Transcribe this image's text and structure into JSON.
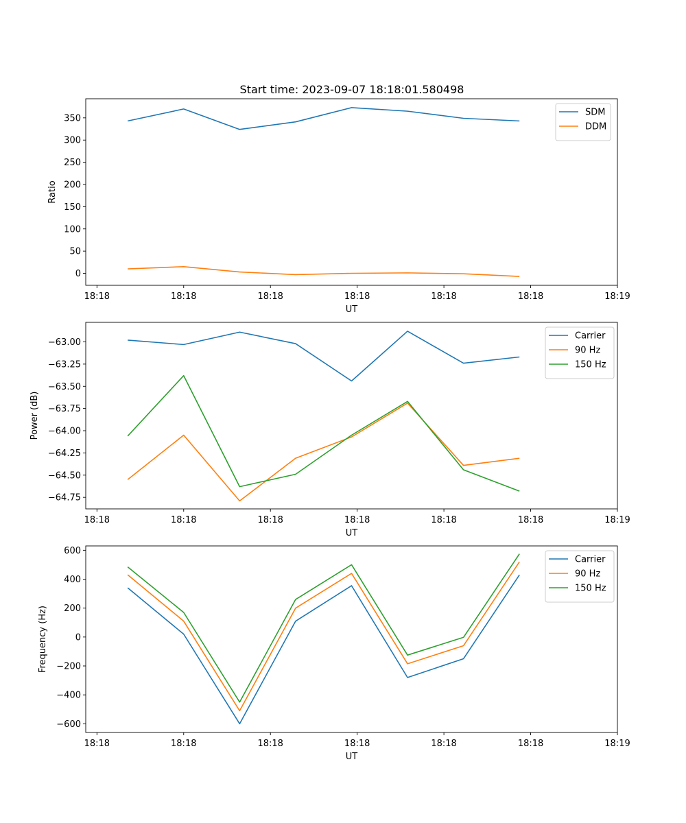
{
  "figure": {
    "title": "Start time: 2023-09-07 18:18:01.580498"
  },
  "chart_data": [
    {
      "type": "line",
      "name": "ratio-panel",
      "xlabel": "UT",
      "ylabel": "Ratio",
      "x": [
        1,
        2,
        3,
        4,
        5,
        6,
        7,
        8
      ],
      "xlim": [
        0.25,
        9.75
      ],
      "xticks": [
        0.45,
        2,
        3.55,
        5.1,
        6.65,
        8.2,
        9.75
      ],
      "xtick_labels": [
        "18:18",
        "18:18",
        "18:18",
        "18:18",
        "18:18",
        "18:18",
        "18:19"
      ],
      "ylim": [
        -27,
        393
      ],
      "yticks": [
        0,
        50,
        100,
        150,
        200,
        250,
        300,
        350
      ],
      "ytick_labels": [
        "0",
        "50",
        "100",
        "150",
        "200",
        "250",
        "300",
        "350"
      ],
      "legend": "top-right",
      "series": [
        {
          "name": "SDM",
          "color": "#1f77b4",
          "values": [
            343,
            370,
            324,
            341,
            373,
            365,
            349,
            343
          ]
        },
        {
          "name": "DDM",
          "color": "#ff7f0e",
          "values": [
            10,
            15,
            3,
            -3,
            0,
            1,
            -1,
            -7
          ]
        }
      ]
    },
    {
      "type": "line",
      "name": "power-panel",
      "xlabel": "UT",
      "ylabel": "Power (dB)",
      "x": [
        1,
        2,
        3,
        4,
        5,
        6,
        7,
        8
      ],
      "xlim": [
        0.25,
        9.75
      ],
      "xticks": [
        0.45,
        2,
        3.55,
        5.1,
        6.65,
        8.2,
        9.75
      ],
      "xtick_labels": [
        "18:18",
        "18:18",
        "18:18",
        "18:18",
        "18:18",
        "18:18",
        "18:19"
      ],
      "ylim": [
        -64.88,
        -62.78
      ],
      "yticks": [
        -63.0,
        -63.25,
        -63.5,
        -63.75,
        -64.0,
        -64.25,
        -64.5,
        -64.75
      ],
      "ytick_labels": [
        "−63.00",
        "−63.25",
        "−63.50",
        "−63.75",
        "−64.00",
        "−64.25",
        "−64.50",
        "−64.75"
      ],
      "legend": "top-right",
      "series": [
        {
          "name": "Carrier",
          "color": "#1f77b4",
          "values": [
            -62.98,
            -63.03,
            -62.89,
            -63.02,
            -63.44,
            -62.88,
            -63.24,
            -63.17
          ]
        },
        {
          "name": "90 Hz",
          "color": "#ff7f0e",
          "values": [
            -64.55,
            -64.05,
            -64.79,
            -64.31,
            -64.07,
            -63.69,
            -64.39,
            -64.31
          ]
        },
        {
          "name": "150 Hz",
          "color": "#2ca02c",
          "values": [
            -64.06,
            -63.38,
            -64.63,
            -64.49,
            -64.05,
            -63.67,
            -64.44,
            -64.68
          ]
        }
      ]
    },
    {
      "type": "line",
      "name": "frequency-panel",
      "xlabel": "UT",
      "ylabel": "Frequency (Hz)",
      "x": [
        1,
        2,
        3,
        4,
        5,
        6,
        7,
        8
      ],
      "xlim": [
        0.25,
        9.75
      ],
      "xticks": [
        0.45,
        2,
        3.55,
        5.1,
        6.65,
        8.2,
        9.75
      ],
      "xtick_labels": [
        "18:18",
        "18:18",
        "18:18",
        "18:18",
        "18:18",
        "18:18",
        "18:19"
      ],
      "ylim": [
        -660,
        630
      ],
      "yticks": [
        600,
        400,
        200,
        0,
        -200,
        -400,
        -600
      ],
      "ytick_labels": [
        "600",
        "400",
        "200",
        "0",
        "−200",
        "−400",
        "−600"
      ],
      "legend": "top-right",
      "series": [
        {
          "name": "Carrier",
          "color": "#1f77b4",
          "values": [
            340,
            20,
            -600,
            110,
            355,
            -280,
            -150,
            430
          ]
        },
        {
          "name": "90 Hz",
          "color": "#ff7f0e",
          "values": [
            430,
            110,
            -510,
            200,
            440,
            -185,
            -60,
            520
          ]
        },
        {
          "name": "150 Hz",
          "color": "#2ca02c",
          "values": [
            485,
            170,
            -450,
            260,
            500,
            -125,
            -2,
            575
          ]
        }
      ]
    }
  ]
}
